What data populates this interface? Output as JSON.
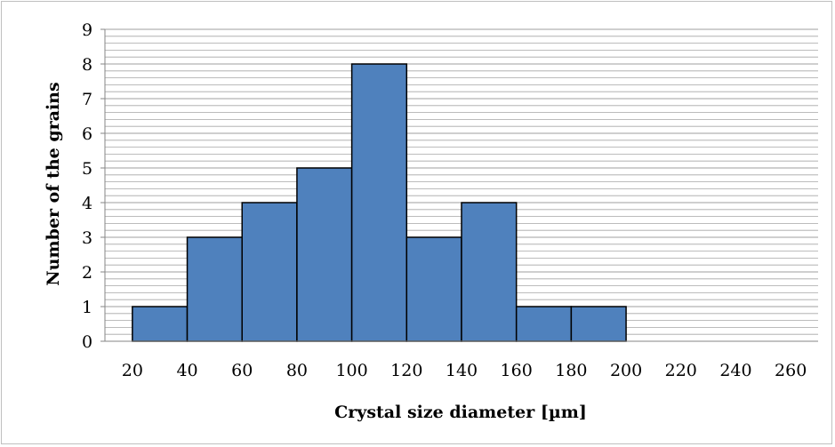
{
  "chart_data": {
    "type": "bar",
    "title": "",
    "xlabel": "Crystal size diameter [µm]",
    "ylabel": "Number of the grains",
    "categories": [
      "20",
      "40",
      "60",
      "80",
      "100",
      "120",
      "140",
      "160",
      "180",
      "200",
      "220",
      "240",
      "260"
    ],
    "values": [
      0,
      1,
      3,
      4,
      5,
      8,
      3,
      4,
      1,
      1,
      0,
      0,
      0
    ],
    "ylim": [
      0,
      9
    ],
    "yticks": [
      "0",
      "1",
      "2",
      "3",
      "4",
      "5",
      "6",
      "7",
      "8",
      "9"
    ],
    "grid": true,
    "legend": "none",
    "colors": {
      "bar": "#4f81bd",
      "bar_edge": "#000000",
      "grid": "#a6a6a6"
    }
  }
}
